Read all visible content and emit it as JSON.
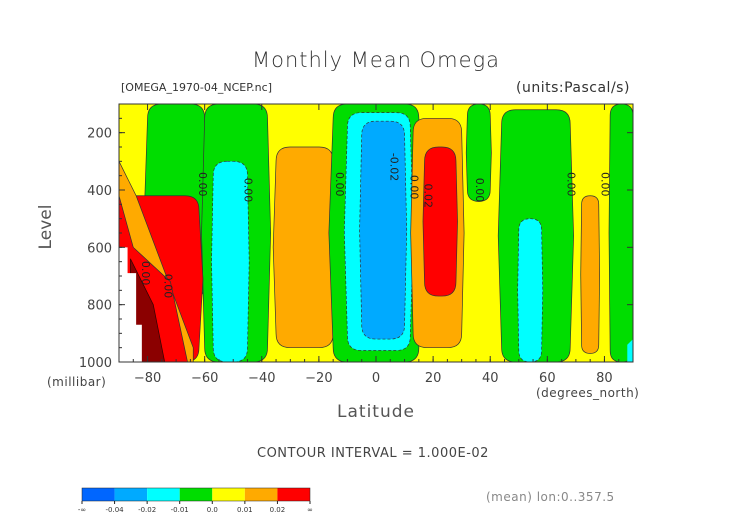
{
  "chart_data": {
    "type": "heatmap",
    "subtype": "filled-contour",
    "title": "Monthly Mean Omega",
    "file_label": "[OMEGA_1970-04_NCEP.nc]",
    "units_label": "(units:Pascal/s)",
    "xlabel": "Latitude",
    "x_units": "(degrees_north)",
    "ylabel": "Level",
    "y_units": "(millibar)",
    "xlim": [
      -90,
      90
    ],
    "ylim": [
      1000,
      100
    ],
    "y_inverted": true,
    "x_ticks": [
      -80,
      -60,
      -40,
      -20,
      0,
      20,
      40,
      60,
      80
    ],
    "x_tick_labels": [
      "−80",
      "−60",
      "−40",
      "−20",
      "0",
      "20",
      "40",
      "60",
      "80"
    ],
    "y_ticks": [
      200,
      400,
      600,
      800,
      1000
    ],
    "y_tick_labels": [
      "200",
      "400",
      "600",
      "800",
      "1000"
    ],
    "contour_interval_text": "CONTOUR INTERVAL = 1.000E-02",
    "footer_note": "(mean) lon:0..357.5",
    "contour_labels": [
      {
        "text": "0.00",
        "lat": -82,
        "level": 690
      },
      {
        "text": "0.00",
        "lat": -74,
        "level": 735
      },
      {
        "text": "0.00",
        "lat": -62,
        "level": 380
      },
      {
        "text": "0.00",
        "lat": -46,
        "level": 400
      },
      {
        "text": "0.00",
        "lat": -14,
        "level": 380
      },
      {
        "text": "-0.02",
        "lat": 5,
        "level": 320
      },
      {
        "text": "0.00",
        "lat": 12,
        "level": 390
      },
      {
        "text": "0.02",
        "lat": 17,
        "level": 420
      },
      {
        "text": "0.00",
        "lat": 35,
        "level": 400
      },
      {
        "text": "0.00",
        "lat": 67,
        "level": 380
      },
      {
        "text": "0.00",
        "lat": 79,
        "level": 380
      }
    ],
    "regions": [
      {
        "value_class": "0.0..0.01",
        "desc": "background positive weak"
      },
      {
        "value_class": "-0.01..0.0",
        "lat_range": [
          -80,
          -60
        ],
        "level_range": [
          100,
          780
        ]
      },
      {
        "value_class": "-0.01..0.0",
        "lat_range": [
          -60,
          -38
        ],
        "level_range": [
          100,
          1000
        ]
      },
      {
        "value_class": "-0.02..-0.01",
        "lat_range": [
          -57,
          -45
        ],
        "level_range": [
          300,
          1000
        ]
      },
      {
        "value_class": "0.01..0.02",
        "lat_range": [
          -35,
          -15
        ],
        "level_range": [
          250,
          950
        ]
      },
      {
        "value_class": "-0.01..0.0",
        "lat_range": [
          -15,
          15
        ],
        "level_range": [
          100,
          1000
        ]
      },
      {
        "value_class": "-0.02..-0.01",
        "lat_range": [
          -10,
          12
        ],
        "level_range": [
          130,
          960
        ]
      },
      {
        "value_class": "-0.04..-0.02",
        "lat_range": [
          -5,
          10
        ],
        "level_range": [
          160,
          920
        ]
      },
      {
        "value_class": "0.01..0.02",
        "lat_range": [
          13,
          30
        ],
        "level_range": [
          150,
          950
        ]
      },
      {
        "value_class": "0.02..inf",
        "lat_range": [
          17,
          28
        ],
        "level_range": [
          250,
          770
        ]
      },
      {
        "value_class": "0.02..inf",
        "lat_range": [
          -90,
          -62
        ],
        "level_range": [
          420,
          1000
        ]
      },
      {
        "value_class": "-0.01..0.0",
        "lat_range": [
          32,
          40
        ],
        "level_range": [
          100,
          440
        ]
      },
      {
        "value_class": "-0.01..0.0",
        "lat_range": [
          44,
          68
        ],
        "level_range": [
          120,
          1000
        ]
      },
      {
        "value_class": "-0.02..-0.01",
        "lat_range": [
          50,
          58
        ],
        "level_range": [
          500,
          1000
        ]
      },
      {
        "value_class": "0.01..0.02",
        "lat_range": [
          72,
          78
        ],
        "level_range": [
          420,
          970
        ]
      },
      {
        "value_class": "-0.01..0.0",
        "lat_range": [
          82,
          90
        ],
        "level_range": [
          100,
          1000
        ]
      }
    ],
    "colorbar": {
      "levels": [
        "-∞",
        "-0.04",
        "-0.02",
        "-0.01",
        "0.0",
        "0.01",
        "0.02",
        "∞"
      ],
      "colors": [
        "#0066ff",
        "#00aaff",
        "#00ffff",
        "#00dd00",
        "#ffff00",
        "#ffaa00",
        "#ff0000"
      ]
    }
  }
}
